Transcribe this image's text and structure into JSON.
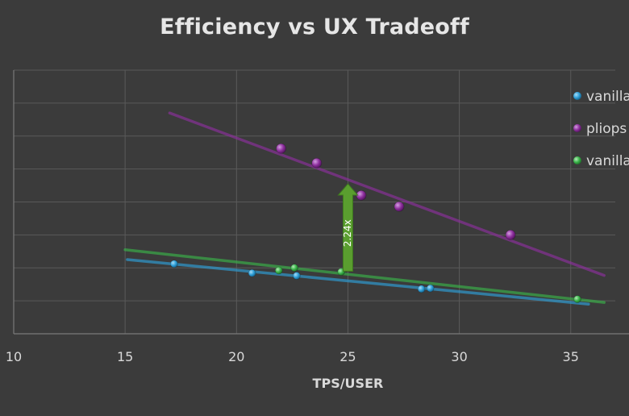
{
  "chart_data": {
    "type": "scatter",
    "title": "Efficiency vs UX Tradeoff",
    "xlabel": "TPS/USER",
    "ylabel": "",
    "xlim": [
      10,
      37
    ],
    "ylim": [
      0,
      8
    ],
    "x_ticks": [
      "10",
      "15",
      "20",
      "25",
      "30",
      "35"
    ],
    "y_tick_labels_visible": false,
    "grid": true,
    "legend_position": "right",
    "series": [
      {
        "name": "vanilla",
        "color": "#2e9fd8",
        "points": [
          [
            17.2,
            2.12
          ],
          [
            20.7,
            1.84
          ],
          [
            22.7,
            1.76
          ],
          [
            28.3,
            1.36
          ],
          [
            28.7,
            1.38
          ]
        ],
        "trendline": [
          [
            15.1,
            2.25
          ],
          [
            35.8,
            0.9
          ]
        ]
      },
      {
        "name": "pliops",
        "color": "#8e2f9e",
        "points": [
          [
            22.0,
            5.62
          ],
          [
            23.6,
            5.18
          ],
          [
            25.6,
            4.2
          ],
          [
            27.3,
            3.86
          ],
          [
            32.3,
            3.0
          ]
        ],
        "trendline": [
          [
            17.0,
            6.7
          ],
          [
            36.5,
            1.77
          ]
        ]
      },
      {
        "name": "vanilla",
        "color": "#3ab34a",
        "points": [
          [
            21.9,
            1.92
          ],
          [
            22.6,
            2.0
          ],
          [
            24.7,
            1.88
          ],
          [
            35.3,
            1.05
          ]
        ],
        "trendline": [
          [
            15.0,
            2.55
          ],
          [
            36.5,
            0.95
          ]
        ]
      }
    ],
    "annotation": {
      "label": "2.24x",
      "x": 25.0,
      "y_from": 1.9,
      "y_to": 4.55,
      "color": "#5a9e2f"
    }
  }
}
